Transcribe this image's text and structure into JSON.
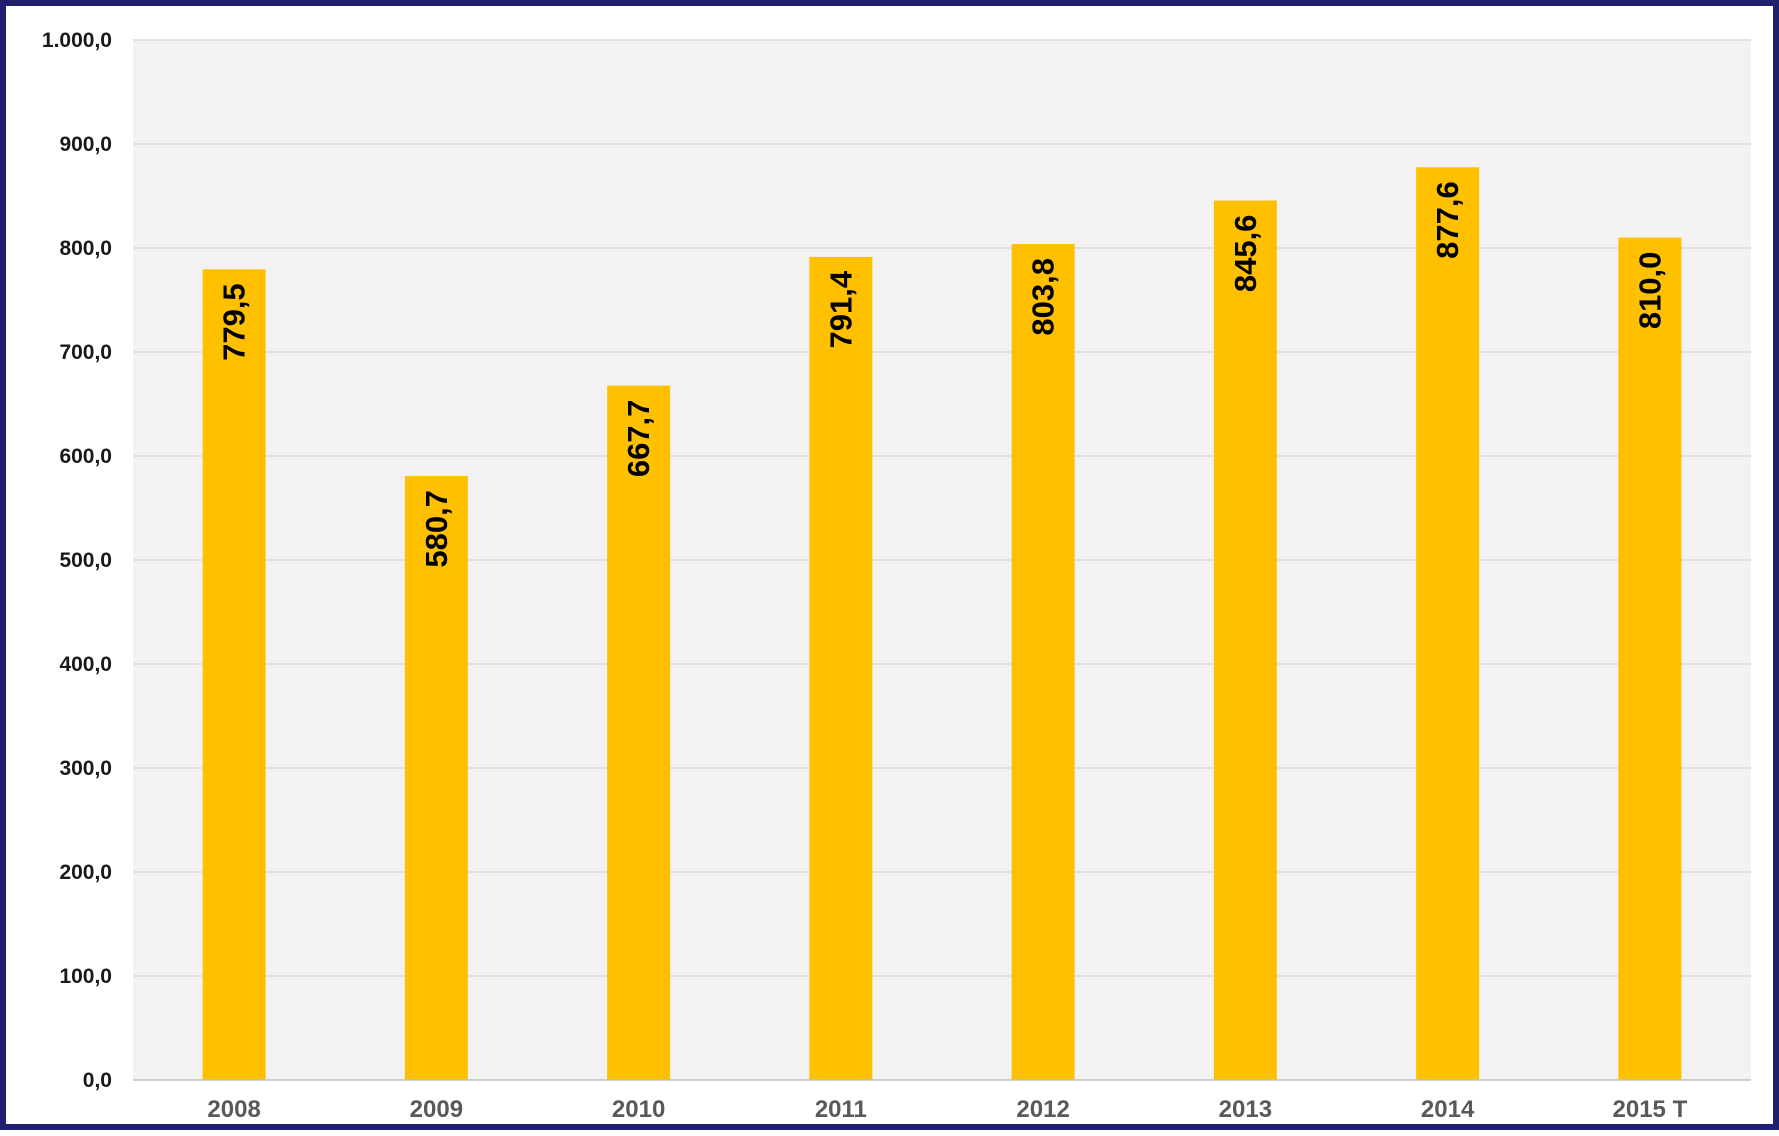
{
  "chart_data": {
    "type": "bar",
    "title": "",
    "xlabel": "",
    "ylabel": "",
    "categories": [
      "2008",
      "2009",
      "2010",
      "2011",
      "2012",
      "2013",
      "2014",
      "2015 T"
    ],
    "values": [
      779.5,
      580.7,
      667.7,
      791.4,
      803.8,
      845.6,
      877.6,
      810.0
    ],
    "value_labels": [
      "779,5",
      "580,7",
      "667,7",
      "791,4",
      "803,8",
      "845,6",
      "877,6",
      "810,0"
    ],
    "ylim": [
      0,
      1000
    ],
    "yticks": [
      0,
      100,
      200,
      300,
      400,
      500,
      600,
      700,
      800,
      900,
      1000
    ],
    "ytick_labels": [
      "0,0",
      "100,0",
      "200,0",
      "300,0",
      "400,0",
      "500,0",
      "600,0",
      "700,0",
      "800,0",
      "900,0",
      "1.000,0"
    ],
    "grid": true,
    "legend": "none",
    "data_label_orientation": "vertical"
  },
  "colors": {
    "bar": "#FFC000",
    "plot_background": "#F2F2F2",
    "gridline": "#D9D9D9",
    "frame_border": "#1F1F6E",
    "axis_line": "#BFBFBF"
  }
}
